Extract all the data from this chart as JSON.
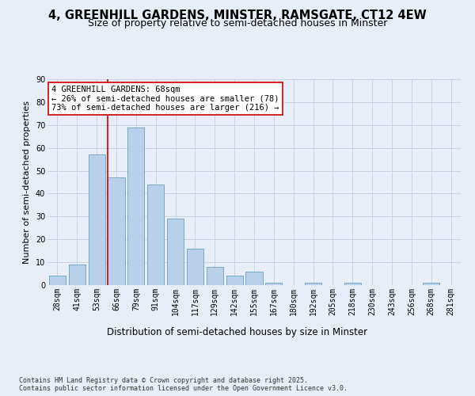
{
  "title": "4, GREENHILL GARDENS, MINSTER, RAMSGATE, CT12 4EW",
  "subtitle": "Size of property relative to semi-detached houses in Minster",
  "xlabel": "Distribution of semi-detached houses by size in Minster",
  "ylabel": "Number of semi-detached properties",
  "categories": [
    "28sqm",
    "41sqm",
    "53sqm",
    "66sqm",
    "79sqm",
    "91sqm",
    "104sqm",
    "117sqm",
    "129sqm",
    "142sqm",
    "155sqm",
    "167sqm",
    "180sqm",
    "192sqm",
    "205sqm",
    "218sqm",
    "230sqm",
    "243sqm",
    "256sqm",
    "268sqm",
    "281sqm"
  ],
  "values": [
    4,
    9,
    57,
    47,
    69,
    44,
    29,
    16,
    8,
    4,
    6,
    1,
    0,
    1,
    0,
    1,
    0,
    0,
    0,
    1,
    0
  ],
  "bar_color": "#b8d0ea",
  "bar_edge_color": "#6a9fc0",
  "bar_edge_width": 0.6,
  "property_label": "4 GREENHILL GARDENS: 68sqm",
  "pct_smaller": 26,
  "pct_larger": 73,
  "n_smaller": 78,
  "n_larger": 216,
  "redline_color": "#cc0000",
  "annotation_border_color": "#cc0000",
  "ylim": [
    0,
    90
  ],
  "yticks": [
    0,
    10,
    20,
    30,
    40,
    50,
    60,
    70,
    80,
    90
  ],
  "grid_color": "#c8d4e4",
  "background_color": "#e8eef8",
  "footer": "Contains HM Land Registry data © Crown copyright and database right 2025.\nContains public sector information licensed under the Open Government Licence v3.0.",
  "title_fontsize": 10.5,
  "subtitle_fontsize": 9,
  "xlabel_fontsize": 8.5,
  "ylabel_fontsize": 8,
  "tick_fontsize": 7,
  "ann_fontsize": 7.5
}
